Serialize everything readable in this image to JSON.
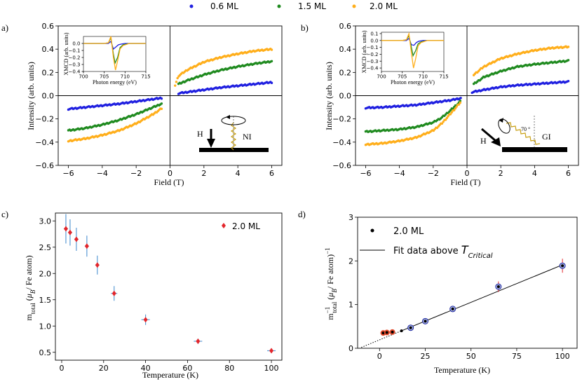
{
  "legend": {
    "items": [
      {
        "label": "0.6 ML",
        "color": "#1f1fe0"
      },
      {
        "label": "1.5 ML",
        "color": "#1f8a1f"
      },
      {
        "label": "2.0 ML",
        "color": "#ffae1a"
      }
    ]
  },
  "chart_data": [
    {
      "panel": "a)",
      "type": "line",
      "xlabel": "Field (T)",
      "ylabel": "Intensity (arb. units)",
      "xlim": [
        -6.6,
        6.6
      ],
      "ylim": [
        -0.6,
        0.6
      ],
      "xticks": [
        "−6",
        "−4",
        "−2",
        "0",
        "2",
        "4",
        "6"
      ],
      "yticks": [
        "−0.6",
        "−0.4",
        "−0.2",
        "0.0",
        "0.2",
        "0.4",
        "0.6"
      ],
      "series": [
        {
          "name": "0.6 ML",
          "color": "#1f1fe0",
          "x": [
            -6,
            -5,
            -4,
            -3,
            -2,
            -1,
            -0.5,
            0.5,
            1,
            2,
            3,
            4,
            5,
            6
          ],
          "y": [
            -0.115,
            -0.1,
            -0.085,
            -0.07,
            -0.05,
            -0.03,
            -0.02,
            0.02,
            0.03,
            0.05,
            0.07,
            0.085,
            0.1,
            0.115
          ]
        },
        {
          "name": "1.5 ML",
          "color": "#1f8a1f",
          "x": [
            -6,
            -5,
            -4,
            -3,
            -2,
            -1,
            -0.5,
            0.5,
            1,
            2,
            3,
            4,
            5,
            6
          ],
          "y": [
            -0.3,
            -0.28,
            -0.25,
            -0.21,
            -0.16,
            -0.1,
            -0.07,
            0.1,
            0.13,
            0.18,
            0.22,
            0.25,
            0.275,
            0.295
          ]
        },
        {
          "name": "2.0 ML",
          "color": "#ffae1a",
          "x": [
            -6,
            -5,
            -4,
            -3,
            -2,
            -1,
            -0.5,
            0.3,
            0.5,
            1,
            2,
            3,
            4,
            5,
            6
          ],
          "y": [
            -0.39,
            -0.37,
            -0.34,
            -0.3,
            -0.24,
            -0.16,
            -0.11,
            0.09,
            0.17,
            0.22,
            0.29,
            0.33,
            0.36,
            0.385,
            0.4
          ]
        }
      ],
      "geometry_label": "NI",
      "field_label": "H",
      "inset": {
        "xlabel": "Photon energy (eV)",
        "ylabel": "XMCD (arb. units)",
        "xlim": [
          700,
          715
        ],
        "ylim": [
          -0.4,
          0.1
        ],
        "xticks": [
          "700",
          "705",
          "710",
          "715"
        ],
        "yticks": [
          "0.0",
          "−0.1",
          "−0.2",
          "−0.3",
          "−0.4"
        ],
        "series": [
          {
            "name": "0.6 ML",
            "color": "#1f1fe0",
            "x": [
              700,
              705,
              706,
              706.6,
              707.2,
              707.8,
              708.4,
              709,
              710,
              712,
              715
            ],
            "y": [
              0,
              0,
              0.0,
              0.03,
              -0.08,
              -0.05,
              -0.02,
              -0.01,
              0,
              0,
              0
            ]
          },
          {
            "name": "1.5 ML",
            "color": "#1f8a1f",
            "x": [
              700,
              705,
              706,
              706.6,
              707.2,
              707.6,
              708.2,
              708.8,
              709.5,
              711,
              715
            ],
            "y": [
              0,
              0,
              0.01,
              0.08,
              -0.15,
              -0.28,
              -0.2,
              -0.06,
              -0.02,
              0,
              0
            ]
          },
          {
            "name": "2.0 ML",
            "color": "#ffae1a",
            "x": [
              700,
              705,
              706,
              706.6,
              707.2,
              707.7,
              708.2,
              708.8,
              709.5,
              711,
              715
            ],
            "y": [
              0,
              0,
              0.01,
              0.1,
              -0.2,
              -0.38,
              -0.25,
              -0.08,
              -0.03,
              0,
              0
            ]
          }
        ]
      }
    },
    {
      "panel": "b)",
      "type": "line",
      "xlabel": "Field (T)",
      "ylabel": "Intensity (arb. units)",
      "xlim": [
        -6.6,
        6.6
      ],
      "ylim": [
        -0.6,
        0.6
      ],
      "xticks": [
        "−6",
        "−4",
        "−2",
        "0",
        "2",
        "4",
        "6"
      ],
      "yticks": [
        "−0.6",
        "−0.4",
        "−0.2",
        "0.0",
        "0.2",
        "0.4",
        "0.6"
      ],
      "series": [
        {
          "name": "0.6 ML",
          "color": "#1f1fe0",
          "x": [
            -6,
            -5,
            -4,
            -3,
            -2,
            -1,
            -0.3,
            0.3,
            1,
            2,
            3,
            4,
            5,
            6
          ],
          "y": [
            -0.105,
            -0.1,
            -0.09,
            -0.08,
            -0.06,
            -0.04,
            -0.02,
            0.03,
            0.05,
            0.075,
            0.09,
            0.1,
            0.11,
            0.12
          ]
        },
        {
          "name": "1.5 ML",
          "color": "#1f8a1f",
          "x": [
            -6,
            -5,
            -4,
            -3,
            -2,
            -1.5,
            -1,
            -0.4,
            0.4,
            1,
            2,
            3,
            4,
            5,
            6
          ],
          "y": [
            -0.31,
            -0.3,
            -0.29,
            -0.27,
            -0.23,
            -0.19,
            -0.13,
            -0.05,
            0.1,
            0.16,
            0.21,
            0.25,
            0.27,
            0.285,
            0.3
          ]
        },
        {
          "name": "2.0 ML",
          "color": "#ffae1a",
          "x": [
            -6,
            -5,
            -4,
            -3,
            -2,
            -1.5,
            -1,
            -0.4,
            0.4,
            1,
            2,
            3,
            4,
            5,
            6
          ],
          "y": [
            -0.42,
            -0.41,
            -0.39,
            -0.36,
            -0.3,
            -0.24,
            -0.16,
            -0.06,
            0.18,
            0.25,
            0.32,
            0.36,
            0.39,
            0.41,
            0.42
          ]
        }
      ],
      "geometry_label": "GI",
      "field_label": "H",
      "angle_label": "70 °",
      "inset": {
        "xlabel": "Photon energy (eV)",
        "ylabel": "XMCD (arb. units)",
        "xlim": [
          700,
          715
        ],
        "ylim": [
          -0.45,
          0.12
        ],
        "xticks": [
          "700",
          "705",
          "710",
          "715"
        ],
        "yticks": [
          "0.1",
          "0.0",
          "−0.1",
          "−0.2",
          "−0.3",
          "−0.4"
        ],
        "series": [
          {
            "name": "0.6 ML",
            "color": "#1f1fe0",
            "x": [
              700,
              705,
              706,
              706.6,
              707.2,
              707.8,
              708.4,
              709,
              710,
              712,
              715
            ],
            "y": [
              0,
              0,
              0.0,
              0.03,
              -0.06,
              -0.07,
              -0.03,
              -0.01,
              0,
              0,
              0
            ]
          },
          {
            "name": "1.5 ML",
            "color": "#1f8a1f",
            "x": [
              700,
              705,
              706,
              706.6,
              707.2,
              707.6,
              708.2,
              708.8,
              709.5,
              711,
              715
            ],
            "y": [
              0,
              0,
              0.01,
              0.07,
              -0.1,
              -0.22,
              -0.15,
              -0.05,
              -0.02,
              0,
              0
            ]
          },
          {
            "name": "2.0 ML",
            "color": "#ffae1a",
            "x": [
              700,
              705,
              706,
              706.6,
              707.2,
              707.7,
              708.2,
              708.8,
              709.5,
              711,
              715
            ],
            "y": [
              0,
              0,
              0.01,
              0.1,
              -0.18,
              -0.4,
              -0.27,
              -0.08,
              -0.03,
              0,
              0
            ]
          }
        ]
      }
    },
    {
      "panel": "c)",
      "type": "scatter",
      "xlabel": "Temperature (K)",
      "ylabel": "m_total (μB / Fe atom)",
      "xlim": [
        -3,
        105
      ],
      "ylim": [
        0.35,
        3.15
      ],
      "xticks": [
        "0",
        "20",
        "40",
        "60",
        "80",
        "100"
      ],
      "yticks": [
        "0.5",
        "1.0",
        "1.5",
        "2.0",
        "2.5",
        "3.0"
      ],
      "series": [
        {
          "name": "2.0 ML",
          "color": "#e3262b",
          "x": [
            2,
            4,
            7,
            12,
            17,
            25,
            40,
            65,
            100
          ],
          "y": [
            2.85,
            2.78,
            2.65,
            2.52,
            2.16,
            1.62,
            1.12,
            0.71,
            0.53
          ],
          "yerr": [
            0.28,
            0.25,
            0.22,
            0.2,
            0.18,
            0.14,
            0.1,
            0.05,
            0.04
          ],
          "xerr": [
            1.0,
            1.0,
            1.0,
            1.0,
            1.0,
            1.5,
            2.0,
            2.0,
            2.0
          ]
        }
      ]
    },
    {
      "panel": "d)",
      "type": "scatter",
      "xlabel": "Temperature (K)",
      "ylabel": "m_total^-1 (μB / Fe atom)^-1",
      "xlim": [
        -12,
        108
      ],
      "ylim": [
        0,
        3
      ],
      "xticks": [
        "0",
        "25",
        "50",
        "75",
        "100"
      ],
      "yticks": [
        "0",
        "1",
        "2",
        "3"
      ],
      "series": [
        {
          "name": "2.0 ML",
          "color": "#000000",
          "x": [
            2,
            4,
            7,
            12,
            17,
            25,
            40,
            65,
            100
          ],
          "y": [
            0.35,
            0.36,
            0.37,
            0.4,
            0.47,
            0.62,
            0.9,
            1.41,
            1.89
          ],
          "yerr": [
            0.03,
            0.03,
            0.03,
            0.03,
            0.04,
            0.05,
            0.07,
            0.12,
            0.16
          ]
        },
        {
          "name": "Fit data above T_Critical",
          "color": "#000000",
          "x": [
            12,
            100
          ],
          "y": [
            0.4,
            1.91
          ]
        }
      ],
      "fit_extension": {
        "x": [
          -10,
          12
        ],
        "y": [
          0.02,
          0.4
        ]
      },
      "legend_labels": {
        "points": "2.0 ML",
        "fit": "Fit data above ",
        "fit_var": "T",
        "fit_sub": "Critical"
      }
    }
  ]
}
